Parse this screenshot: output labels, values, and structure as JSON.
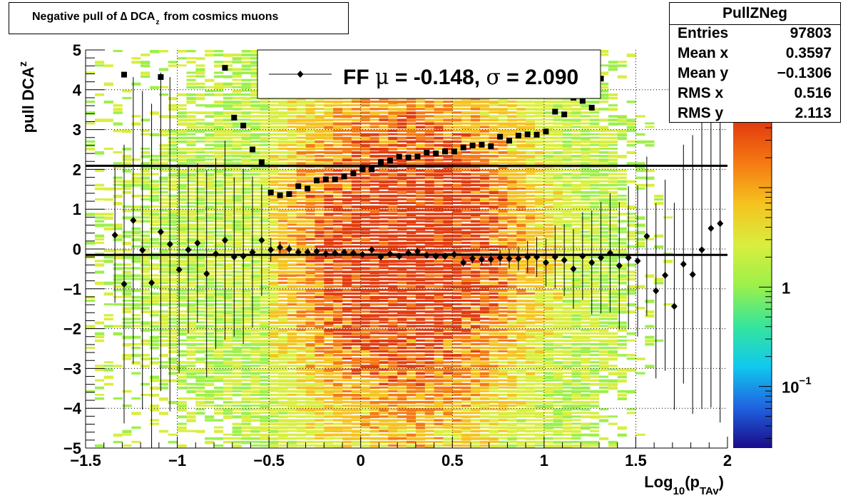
{
  "title": {
    "prefix": "Negative pull of ",
    "delta": "∆",
    "var": " DCA",
    "sub": "z",
    "suffix": "from cosmics muons"
  },
  "stats": {
    "name": "PullZNeg",
    "rows": [
      {
        "key": "Entries",
        "value": "97803"
      },
      {
        "key": "Mean x",
        "value": "0.3597"
      },
      {
        "key": "Mean y",
        "value": "−0.1306"
      },
      {
        "key": "RMS x",
        "value": "0.516"
      },
      {
        "key": "RMS y",
        "value": "2.113"
      }
    ]
  },
  "legend": {
    "label": "FF",
    "mu": "μ",
    "mean_text": " = -0.148, ",
    "sigma": "σ",
    "sigma_text": " =   2.090"
  },
  "axes": {
    "x": {
      "label_main": "Log",
      "label_sub": "10",
      "label_p": "(p",
      "label_sub2": "TAv",
      "label_end": ")",
      "min": -1.5,
      "max": 2.0,
      "ticks": [
        "−1.5",
        "−1",
        "−0.5",
        "0",
        "0.5",
        "1",
        "1.5",
        "2"
      ],
      "tick_values": [
        -1.5,
        -1,
        -0.5,
        0,
        0.5,
        1,
        1.5,
        2
      ]
    },
    "y": {
      "label_main": "pull DCA",
      "label_sub": "z",
      "min": -5,
      "max": 5,
      "ticks": [
        "−5",
        "−4",
        "−3",
        "−2",
        "−1",
        "0",
        "1",
        "2",
        "3",
        "4",
        "5"
      ],
      "tick_values": [
        -5,
        -4,
        -3,
        -2,
        -1,
        0,
        1,
        2,
        3,
        4,
        5
      ]
    },
    "z": {
      "scale": "log",
      "labels": [
        {
          "value": 0.1,
          "base": "10",
          "exp": "−1"
        },
        {
          "value": 1,
          "text": "1"
        }
      ]
    }
  },
  "chart_data": {
    "type": "heatmap",
    "grid": "dotted",
    "colormap": [
      "#1a0a8a",
      "#1f63e0",
      "#11c8ef",
      "#36e59b",
      "#9cf04a",
      "#d9ee3e",
      "#f5c31f",
      "#f57a12",
      "#e23c0e"
    ],
    "fit_lines": [
      {
        "name": "mean",
        "y": -0.148
      },
      {
        "name": "sigma",
        "y": 2.09
      }
    ],
    "mean_points": {
      "marker": "diamond",
      "x": [
        -1.34,
        -1.29,
        -1.24,
        -1.19,
        -1.14,
        -1.09,
        -1.04,
        -0.99,
        -0.94,
        -0.89,
        -0.84,
        -0.79,
        -0.74,
        -0.69,
        -0.64,
        -0.59,
        -0.54,
        -0.49,
        -0.44,
        -0.39,
        -0.34,
        -0.29,
        -0.24,
        -0.19,
        -0.14,
        -0.09,
        -0.04,
        0.01,
        0.06,
        0.11,
        0.16,
        0.21,
        0.26,
        0.31,
        0.36,
        0.41,
        0.46,
        0.51,
        0.56,
        0.61,
        0.66,
        0.71,
        0.76,
        0.81,
        0.86,
        0.91,
        0.96,
        1.01,
        1.06,
        1.11,
        1.16,
        1.21,
        1.26,
        1.31,
        1.36,
        1.41,
        1.46,
        1.51,
        1.56,
        1.61,
        1.66,
        1.71,
        1.76,
        1.81,
        1.86,
        1.91,
        1.96
      ],
      "y": [
        0.35,
        -0.88,
        0.72,
        -0.03,
        -0.85,
        0.43,
        0.12,
        -0.52,
        -0.02,
        0.15,
        -0.62,
        -0.12,
        0.22,
        -0.2,
        -0.18,
        -0.08,
        0.22,
        -0.02,
        0.04,
        0.0,
        -0.08,
        -0.08,
        -0.06,
        -0.12,
        -0.1,
        -0.08,
        -0.1,
        -0.14,
        -0.02,
        -0.2,
        -0.12,
        -0.18,
        -0.1,
        -0.06,
        -0.16,
        -0.18,
        -0.18,
        -0.14,
        -0.34,
        -0.24,
        -0.26,
        -0.26,
        -0.22,
        -0.24,
        -0.24,
        -0.2,
        -0.2,
        -0.34,
        -0.2,
        -0.28,
        -0.5,
        -0.18,
        -0.34,
        -0.22,
        -0.1,
        -0.42,
        -0.22,
        -0.3,
        0.32,
        -1.05,
        -0.66,
        -1.44,
        -0.38,
        -0.64,
        -0.02,
        0.52,
        0.64
      ],
      "yerr": [
        1.7,
        3.5,
        3.6,
        4.0,
        4.5,
        4.0,
        4.2,
        2.6,
        2.1,
        2.0,
        2.6,
        2.4,
        2.5,
        2.0,
        2.2,
        1.9,
        1.4,
        0.3,
        0.15,
        0.12,
        0.1,
        0.1,
        0.09,
        0.09,
        0.08,
        0.08,
        0.08,
        0.08,
        0.08,
        0.08,
        0.08,
        0.08,
        0.08,
        0.08,
        0.08,
        0.09,
        0.09,
        0.1,
        0.1,
        0.12,
        0.14,
        0.16,
        0.2,
        0.25,
        0.3,
        0.4,
        0.5,
        0.6,
        0.8,
        0.9,
        1.0,
        1.1,
        1.3,
        1.4,
        1.5,
        1.6,
        1.8,
        1.9,
        2.0,
        2.2,
        2.4,
        2.6,
        3.0,
        3.5,
        4.0,
        4.5,
        5.0
      ]
    },
    "sigma_points": {
      "marker": "square",
      "x": [
        -1.29,
        -1.09,
        -0.74,
        -0.69,
        -0.64,
        -0.59,
        -0.54,
        -0.49,
        -0.44,
        -0.39,
        -0.34,
        -0.29,
        -0.24,
        -0.19,
        -0.14,
        -0.09,
        -0.04,
        0.01,
        0.06,
        0.11,
        0.16,
        0.21,
        0.26,
        0.31,
        0.36,
        0.41,
        0.46,
        0.51,
        0.56,
        0.61,
        0.66,
        0.71,
        0.76,
        0.81,
        0.86,
        0.91,
        0.96,
        1.01,
        1.06,
        1.11,
        1.16,
        1.21,
        1.26,
        1.31
      ],
      "y": [
        4.38,
        4.32,
        4.55,
        3.3,
        3.1,
        2.5,
        2.18,
        1.42,
        1.35,
        1.38,
        1.58,
        1.52,
        1.72,
        1.75,
        1.75,
        1.82,
        1.9,
        2.0,
        2.0,
        2.18,
        2.22,
        2.32,
        2.3,
        2.32,
        2.42,
        2.4,
        2.45,
        2.45,
        2.55,
        2.6,
        2.62,
        2.58,
        2.82,
        2.72,
        2.85,
        2.88,
        2.87,
        2.95,
        3.45,
        3.38,
        3.8,
        3.72,
        3.55,
        4.28
      ]
    }
  }
}
